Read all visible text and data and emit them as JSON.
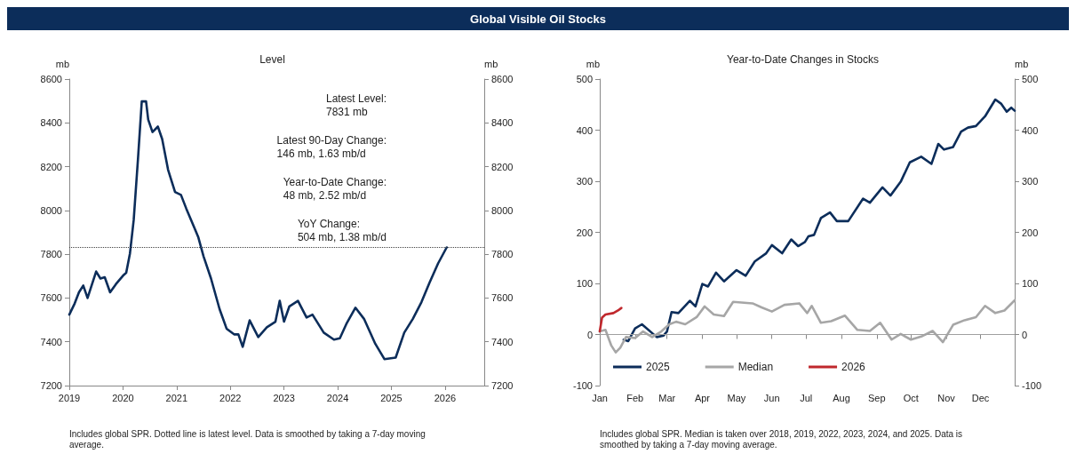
{
  "chart_data": [
    {
      "type": "other",
      "title": "Global Visible Oil Stocks"
    },
    {
      "type": "line",
      "title": "Level",
      "ylabel": "mb",
      "y2label": "mb",
      "marker": "none",
      "line_style": "solid",
      "grid": false,
      "legend": false,
      "xlim": [
        2019,
        2026.73
      ],
      "xticks": [
        2019,
        2020,
        2021,
        2022,
        2023,
        2024,
        2025,
        2026
      ],
      "ylim": [
        7200,
        8600
      ],
      "yticks": [
        7200,
        7400,
        7600,
        7800,
        8000,
        8200,
        8400,
        8600
      ],
      "y2lim": [
        7200,
        8600
      ],
      "y2ticks": [
        7200,
        7400,
        7600,
        7800,
        8000,
        8200,
        8400,
        8600
      ],
      "ref_lines": [
        {
          "axis": "y",
          "value": 7831,
          "color": "#404040",
          "line_style": "dotted"
        }
      ],
      "annotations": [
        "Latest Level:\n7831 mb",
        "Latest 90-Day Change:\n146 mb, 1.63 mb/d",
        "Year-to-Date Change:\n48 mb, 2.52 mb/d",
        "YoY Change:\n504 mb, 1.38 mb/d",
        "Includes global SPR. Dotted line is latest level. Data is smoothed by taking a 7-day moving average."
      ],
      "series": [
        {
          "color": "#0c2d5a",
          "x": [
            2019.0,
            2019.1,
            2019.18,
            2019.26,
            2019.34,
            2019.5,
            2019.58,
            2019.66,
            2019.76,
            2019.87,
            2020.0,
            2020.06,
            2020.13,
            2020.2,
            2020.28,
            2020.35,
            2020.43,
            2020.47,
            2020.55,
            2020.65,
            2020.73,
            2020.84,
            2020.97,
            2021.08,
            2021.18,
            2021.4,
            2021.5,
            2021.64,
            2021.8,
            2021.93,
            2022.07,
            2022.15,
            2022.23,
            2022.36,
            2022.52,
            2022.68,
            2022.84,
            2022.92,
            2023.0,
            2023.1,
            2023.26,
            2023.42,
            2023.53,
            2023.74,
            2023.93,
            2024.04,
            2024.17,
            2024.33,
            2024.49,
            2024.7,
            2024.87,
            2025.08,
            2025.24,
            2025.4,
            2025.56,
            2025.71,
            2025.87,
            2026.03
          ],
          "values": [
            7524,
            7575,
            7626,
            7657,
            7600,
            7721,
            7689,
            7695,
            7626,
            7664,
            7702,
            7715,
            7804,
            7957,
            8237,
            8498,
            8498,
            8415,
            8358,
            8383,
            8326,
            8186,
            8084,
            8071,
            8008,
            7880,
            7791,
            7689,
            7549,
            7460,
            7434,
            7434,
            7377,
            7498,
            7422,
            7466,
            7492,
            7587,
            7492,
            7562,
            7587,
            7511,
            7524,
            7442,
            7410,
            7416,
            7486,
            7556,
            7505,
            7391,
            7321,
            7328,
            7442,
            7505,
            7581,
            7670,
            7758,
            7831
          ]
        }
      ]
    },
    {
      "type": "line",
      "title": "Year-to-Date Changes in Stocks",
      "ylabel": "mb",
      "y2label": "mb",
      "marker": "none",
      "line_style": "solid",
      "grid": false,
      "legend": "bottom left",
      "xlim": [
        "--01-01",
        "--12-31"
      ],
      "xticks": [
        {
          "value": "--01-01",
          "label": "Jan"
        },
        {
          "value": "--02-01",
          "label": "Feb"
        },
        {
          "value": "--03-01",
          "label": "Mar"
        },
        {
          "value": "--04-01",
          "label": "Apr"
        },
        {
          "value": "--05-01",
          "label": "May"
        },
        {
          "value": "--06-01",
          "label": "Jun"
        },
        {
          "value": "--07-01",
          "label": "Jul"
        },
        {
          "value": "--08-01",
          "label": "Aug"
        },
        {
          "value": "--09-01",
          "label": "Sep"
        },
        {
          "value": "--10-01",
          "label": "Oct"
        },
        {
          "value": "--11-01",
          "label": "Nov"
        },
        {
          "value": "--12-01",
          "label": "Dec"
        }
      ],
      "ylim": [
        -100,
        500
      ],
      "yticks": [
        -100,
        0,
        100,
        200,
        300,
        400,
        500
      ],
      "y2lim": [
        -100,
        500
      ],
      "y2ticks": [
        -100,
        0,
        100,
        200,
        300,
        400,
        500
      ],
      "ref_lines": [
        {
          "axis": "y",
          "value": 0,
          "color": "#a0a0a0",
          "line_style": "solid"
        }
      ],
      "annotations": [
        "Includes global SPR. Median is taken over 2018, 2019, 2022, 2023, 2024, and 2025. Data is smoothed by taking a 7-day moving average."
      ],
      "series": [
        {
          "name": "2025",
          "color": "#0c2d5a",
          "x": [
            "--01-22",
            "--01-26",
            "--02-01",
            "--02-07",
            "--02-20",
            "--02-26",
            "--03-01",
            "--03-05",
            "--03-11",
            "--03-21",
            "--03-26",
            "--04-01",
            "--04-06",
            "--04-13",
            "--04-20",
            "--05-01",
            "--05-09",
            "--05-17",
            "--05-27",
            "--06-01",
            "--06-10",
            "--06-18",
            "--06-24",
            "--06-30",
            "--07-03",
            "--07-08",
            "--07-14",
            "--07-22",
            "--07-28",
            "--08-07",
            "--08-20",
            "--08-26",
            "--09-06",
            "--09-13",
            "--09-22",
            "--09-30",
            "--10-10",
            "--10-19",
            "--10-25",
            "--10-30",
            "--11-07",
            "--11-14",
            "--11-20",
            "--11-27",
            "--12-05",
            "--12-14",
            "--12-19",
            "--12-24",
            "--12-28",
            "--12-31"
          ],
          "values": [
            -10,
            -13,
            12,
            20,
            -5,
            -2,
            6,
            44,
            42,
            66,
            55,
            99,
            94,
            121,
            104,
            126,
            115,
            143,
            159,
            175,
            159,
            186,
            173,
            181,
            192,
            195,
            228,
            239,
            222,
            222,
            266,
            258,
            288,
            272,
            299,
            337,
            348,
            334,
            373,
            362,
            367,
            397,
            405,
            408,
            427,
            460,
            452,
            436,
            444,
            438
          ]
        },
        {
          "name": "Median",
          "color": "#a6a6a6",
          "x": [
            "--01-01",
            "--01-06",
            "--01-11",
            "--01-15",
            "--01-19",
            "--01-24",
            "--02-01",
            "--02-08",
            "--02-16",
            "--02-24",
            "--03-03",
            "--03-09",
            "--03-17",
            "--03-27",
            "--04-03",
            "--04-11",
            "--04-20",
            "--04-28",
            "--05-15",
            "--05-23",
            "--06-01",
            "--06-12",
            "--06-25",
            "--07-02",
            "--07-06",
            "--07-14",
            "--07-23",
            "--08-04",
            "--08-15",
            "--08-26",
            "--09-04",
            "--09-14",
            "--09-22",
            "--10-01",
            "--10-10",
            "--10-20",
            "--10-29",
            "--11-07",
            "--11-17",
            "--11-27",
            "--12-05",
            "--12-14",
            "--12-22",
            "--12-31"
          ],
          "values": [
            6,
            9,
            -21,
            -35,
            -26,
            -5,
            -7,
            6,
            -5,
            6,
            20,
            25,
            20,
            34,
            55,
            39,
            36,
            64,
            61,
            53,
            45,
            58,
            61,
            42,
            56,
            23,
            26,
            37,
            9,
            7,
            23,
            -10,
            1,
            -10,
            -4,
            7,
            -15,
            19,
            28,
            34,
            56,
            42,
            47,
            67
          ]
        },
        {
          "name": "2026",
          "color": "#c0282d",
          "x": [
            "--01-01",
            "--01-03",
            "--01-06",
            "--01-13",
            "--01-17",
            "--01-20"
          ],
          "values": [
            6,
            33,
            39,
            42,
            47,
            52
          ]
        }
      ]
    }
  ]
}
